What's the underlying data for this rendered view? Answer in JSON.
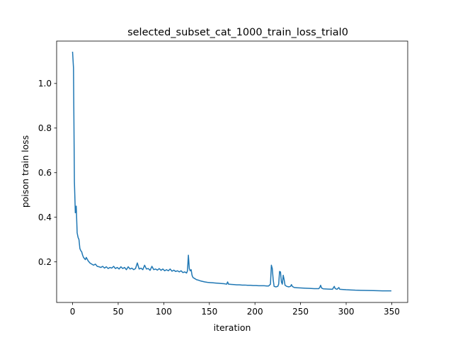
{
  "chart_data": {
    "type": "line",
    "title": "selected_subset_cat_1000_train_loss_trial0",
    "xlabel": "iteration",
    "ylabel": "poison train loss",
    "xlim": [
      -17.5,
      367.5
    ],
    "ylim": [
      0.018,
      1.19
    ],
    "x_ticks": [
      0,
      50,
      100,
      150,
      200,
      250,
      300,
      350
    ],
    "y_ticks": [
      0.2,
      0.4,
      0.6,
      0.8,
      1.0
    ],
    "x_tick_labels": [
      "0",
      "50",
      "100",
      "150",
      "200",
      "250",
      "300",
      "350"
    ],
    "y_tick_labels": [
      "0.2",
      "0.4",
      "0.6",
      "0.8",
      "1.0"
    ],
    "grid": false,
    "legend": "none",
    "series": [
      {
        "color": "#1f77b4",
        "points": [
          [
            0,
            1.14
          ],
          [
            1,
            1.07
          ],
          [
            2,
            0.56
          ],
          [
            3,
            0.42
          ],
          [
            4,
            0.45
          ],
          [
            5,
            0.33
          ],
          [
            6,
            0.31
          ],
          [
            7,
            0.3
          ],
          [
            8,
            0.26
          ],
          [
            9,
            0.25
          ],
          [
            10,
            0.245
          ],
          [
            11,
            0.23
          ],
          [
            12,
            0.22
          ],
          [
            13,
            0.215
          ],
          [
            14,
            0.21
          ],
          [
            15,
            0.22
          ],
          [
            17,
            0.205
          ],
          [
            19,
            0.195
          ],
          [
            21,
            0.19
          ],
          [
            23,
            0.185
          ],
          [
            25,
            0.19
          ],
          [
            27,
            0.18
          ],
          [
            29,
            0.178
          ],
          [
            31,
            0.175
          ],
          [
            33,
            0.18
          ],
          [
            35,
            0.172
          ],
          [
            37,
            0.178
          ],
          [
            39,
            0.17
          ],
          [
            41,
            0.175
          ],
          [
            43,
            0.172
          ],
          [
            45,
            0.18
          ],
          [
            47,
            0.17
          ],
          [
            49,
            0.175
          ],
          [
            51,
            0.168
          ],
          [
            53,
            0.178
          ],
          [
            55,
            0.17
          ],
          [
            57,
            0.175
          ],
          [
            59,
            0.165
          ],
          [
            61,
            0.178
          ],
          [
            63,
            0.168
          ],
          [
            65,
            0.172
          ],
          [
            67,
            0.165
          ],
          [
            69,
            0.17
          ],
          [
            71,
            0.195
          ],
          [
            73,
            0.168
          ],
          [
            75,
            0.172
          ],
          [
            77,
            0.165
          ],
          [
            79,
            0.185
          ],
          [
            81,
            0.168
          ],
          [
            83,
            0.17
          ],
          [
            85,
            0.162
          ],
          [
            87,
            0.18
          ],
          [
            89,
            0.165
          ],
          [
            91,
            0.168
          ],
          [
            93,
            0.163
          ],
          [
            95,
            0.17
          ],
          [
            97,
            0.162
          ],
          [
            99,
            0.168
          ],
          [
            101,
            0.16
          ],
          [
            103,
            0.165
          ],
          [
            105,
            0.16
          ],
          [
            107,
            0.168
          ],
          [
            109,
            0.158
          ],
          [
            111,
            0.163
          ],
          [
            113,
            0.157
          ],
          [
            115,
            0.16
          ],
          [
            117,
            0.155
          ],
          [
            119,
            0.16
          ],
          [
            121,
            0.152
          ],
          [
            123,
            0.155
          ],
          [
            125,
            0.15
          ],
          [
            126,
            0.16
          ],
          [
            127,
            0.23
          ],
          [
            128,
            0.17
          ],
          [
            129,
            0.16
          ],
          [
            130,
            0.165
          ],
          [
            131,
            0.14
          ],
          [
            132,
            0.13
          ],
          [
            134,
            0.125
          ],
          [
            136,
            0.12
          ],
          [
            138,
            0.118
          ],
          [
            140,
            0.115
          ],
          [
            142,
            0.113
          ],
          [
            145,
            0.11
          ],
          [
            148,
            0.108
          ],
          [
            151,
            0.107
          ],
          [
            154,
            0.106
          ],
          [
            157,
            0.105
          ],
          [
            160,
            0.104
          ],
          [
            163,
            0.103
          ],
          [
            166,
            0.102
          ],
          [
            169,
            0.1
          ],
          [
            170,
            0.11
          ],
          [
            171,
            0.1
          ],
          [
            174,
            0.099
          ],
          [
            177,
            0.098
          ],
          [
            180,
            0.097
          ],
          [
            183,
            0.097
          ],
          [
            186,
            0.096
          ],
          [
            189,
            0.096
          ],
          [
            192,
            0.095
          ],
          [
            195,
            0.095
          ],
          [
            198,
            0.094
          ],
          [
            201,
            0.094
          ],
          [
            204,
            0.093
          ],
          [
            207,
            0.093
          ],
          [
            210,
            0.093
          ],
          [
            213,
            0.092
          ],
          [
            215,
            0.092
          ],
          [
            217,
            0.1
          ],
          [
            218,
            0.185
          ],
          [
            219,
            0.17
          ],
          [
            220,
            0.12
          ],
          [
            221,
            0.09
          ],
          [
            223,
            0.088
          ],
          [
            225,
            0.09
          ],
          [
            226,
            0.1
          ],
          [
            227,
            0.157
          ],
          [
            228,
            0.155
          ],
          [
            229,
            0.11
          ],
          [
            230,
            0.1
          ],
          [
            231,
            0.14
          ],
          [
            232,
            0.12
          ],
          [
            233,
            0.095
          ],
          [
            235,
            0.09
          ],
          [
            237,
            0.088
          ],
          [
            239,
            0.09
          ],
          [
            240,
            0.098
          ],
          [
            241,
            0.09
          ],
          [
            243,
            0.085
          ],
          [
            246,
            0.084
          ],
          [
            250,
            0.083
          ],
          [
            255,
            0.082
          ],
          [
            260,
            0.081
          ],
          [
            265,
            0.08
          ],
          [
            270,
            0.08
          ],
          [
            271,
            0.085
          ],
          [
            272,
            0.095
          ],
          [
            273,
            0.083
          ],
          [
            275,
            0.079
          ],
          [
            280,
            0.078
          ],
          [
            285,
            0.077
          ],
          [
            287,
            0.09
          ],
          [
            288,
            0.08
          ],
          [
            290,
            0.077
          ],
          [
            292,
            0.085
          ],
          [
            293,
            0.077
          ],
          [
            297,
            0.076
          ],
          [
            300,
            0.075
          ],
          [
            305,
            0.074
          ],
          [
            310,
            0.073
          ],
          [
            320,
            0.072
          ],
          [
            330,
            0.071
          ],
          [
            340,
            0.07
          ],
          [
            349,
            0.07
          ]
        ]
      }
    ]
  }
}
